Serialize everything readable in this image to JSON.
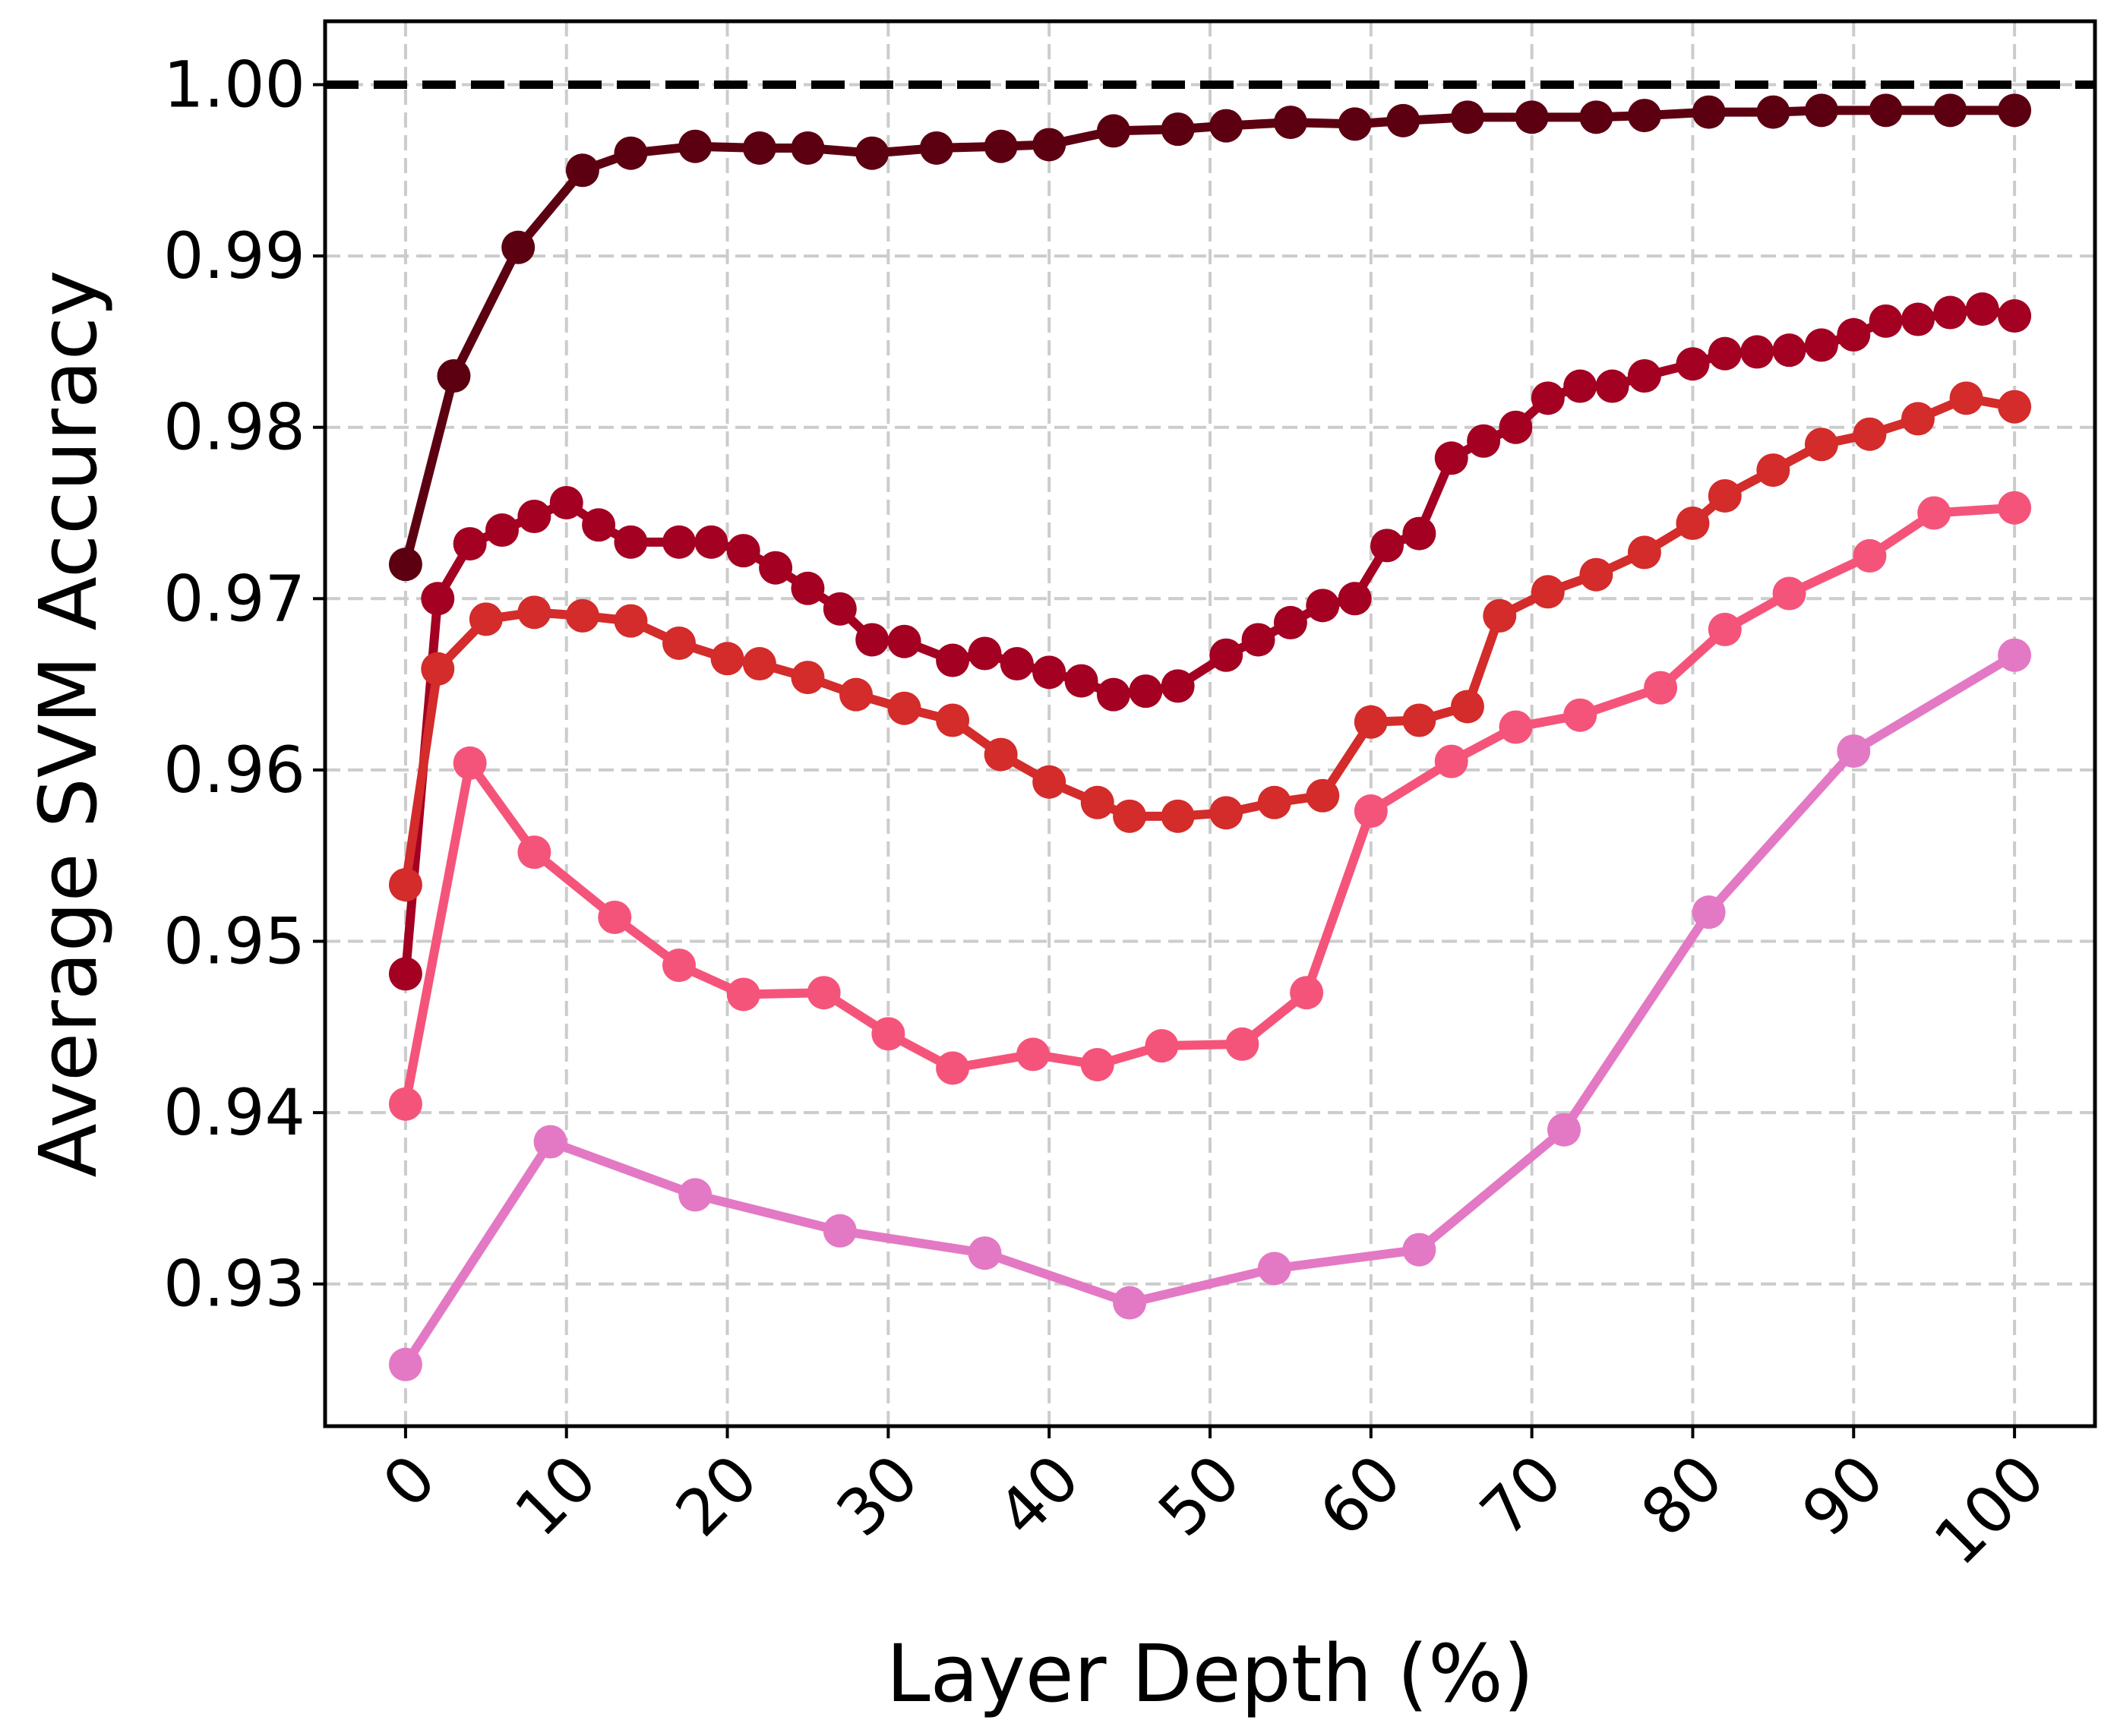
{
  "chart_data": {
    "type": "line",
    "title": "",
    "xlabel": "Layer Depth (%)",
    "ylabel": "Average SVM Accuracy",
    "xlim": [
      -5,
      105
    ],
    "ylim": [
      0.9217,
      1.0037
    ],
    "xticks": [
      0,
      10,
      20,
      30,
      40,
      50,
      60,
      70,
      80,
      90,
      100
    ],
    "xtick_labels": [
      "0",
      "10",
      "20",
      "30",
      "40",
      "50",
      "60",
      "70",
      "80",
      "90",
      "100"
    ],
    "yticks": [
      0.93,
      0.94,
      0.95,
      0.96,
      0.97,
      0.98,
      0.99,
      1.0
    ],
    "ytick_labels": [
      "0.93",
      "0.94",
      "0.95",
      "0.96",
      "0.97",
      "0.98",
      "0.99",
      "1.00"
    ],
    "grid": true,
    "legend": "none",
    "reference_line": {
      "y": 1.0,
      "style": "dashed",
      "color": "#000000"
    },
    "series": [
      {
        "color": "#5c0011",
        "x": [
          0,
          3,
          7,
          11,
          14,
          18,
          22,
          25,
          29,
          33,
          37,
          40,
          44,
          48,
          51,
          55,
          59,
          62,
          66,
          70,
          74,
          77,
          81,
          85,
          88,
          92,
          96,
          100
        ],
        "y": [
          0.972,
          0.983,
          0.9905,
          0.995,
          0.996,
          0.9964,
          0.9963,
          0.9963,
          0.996,
          0.9963,
          0.9964,
          0.9965,
          0.9973,
          0.9974,
          0.9976,
          0.9978,
          0.9977,
          0.9979,
          0.9981,
          0.9981,
          0.9981,
          0.9982,
          0.9984,
          0.9984,
          0.9985,
          0.9985,
          0.9985,
          0.9985
        ]
      },
      {
        "color": "#a30022",
        "x": [
          0,
          2,
          4,
          6,
          8,
          10,
          12,
          14,
          17,
          19,
          21,
          23,
          25,
          27,
          29,
          31,
          34,
          36,
          38,
          40,
          42,
          44,
          46,
          48,
          51,
          53,
          55,
          57,
          59,
          61,
          63,
          65,
          67,
          69,
          71,
          73,
          75,
          77,
          80,
          82,
          84,
          86,
          88,
          90,
          92,
          94,
          96,
          98,
          100
        ],
        "y": [
          0.9481,
          0.97,
          0.9732,
          0.974,
          0.9748,
          0.9756,
          0.9743,
          0.9733,
          0.9733,
          0.9733,
          0.9728,
          0.9718,
          0.9706,
          0.9694,
          0.9676,
          0.9675,
          0.9664,
          0.9668,
          0.9662,
          0.9657,
          0.9652,
          0.9644,
          0.9646,
          0.9649,
          0.9667,
          0.9676,
          0.9686,
          0.9696,
          0.97,
          0.9731,
          0.9738,
          0.9782,
          0.9792,
          0.98,
          0.9817,
          0.9824,
          0.9824,
          0.983,
          0.9837,
          0.9843,
          0.9844,
          0.9845,
          0.9848,
          0.9854,
          0.9862,
          0.9863,
          0.9867,
          0.9869,
          0.9865
        ]
      },
      {
        "color": "#d42b2b",
        "x": [
          0,
          2,
          5,
          8,
          11,
          14,
          17,
          20,
          22,
          25,
          28,
          31,
          34,
          37,
          40,
          43,
          45,
          48,
          51,
          54,
          57,
          60,
          63,
          66,
          68,
          71,
          74,
          77,
          80,
          82,
          85,
          88,
          91,
          94,
          97,
          100
        ],
        "y": [
          0.9533,
          0.9659,
          0.9688,
          0.9692,
          0.969,
          0.9687,
          0.9674,
          0.9665,
          0.9662,
          0.9654,
          0.9644,
          0.9636,
          0.9629,
          0.9609,
          0.9593,
          0.9581,
          0.9573,
          0.9573,
          0.9575,
          0.9581,
          0.9585,
          0.9628,
          0.9629,
          0.9637,
          0.969,
          0.9704,
          0.9714,
          0.9727,
          0.9744,
          0.976,
          0.9775,
          0.979,
          0.9796,
          0.9805,
          0.9817,
          0.9812
        ]
      },
      {
        "color": "#f5547a",
        "x": [
          0,
          4,
          8,
          13,
          17,
          21,
          26,
          30,
          34,
          39,
          43,
          47,
          52,
          56,
          60,
          65,
          69,
          73,
          78,
          82,
          86,
          91,
          95,
          100
        ],
        "y": [
          0.9405,
          0.9604,
          0.9552,
          0.9514,
          0.9486,
          0.9469,
          0.947,
          0.9446,
          0.9426,
          0.9434,
          0.9428,
          0.9439,
          0.944,
          0.947,
          0.9576,
          0.9605,
          0.9625,
          0.9632,
          0.9648,
          0.9682,
          0.9703,
          0.9725,
          0.975,
          0.9753
        ]
      },
      {
        "color": "#e379c4",
        "x": [
          0,
          9,
          18,
          27,
          36,
          45,
          54,
          63,
          72,
          81,
          90,
          100
        ],
        "y": [
          0.9253,
          0.9383,
          0.9352,
          0.9331,
          0.9318,
          0.9289,
          0.9309,
          0.932,
          0.939,
          0.9517,
          0.9611,
          0.9667
        ]
      }
    ]
  }
}
